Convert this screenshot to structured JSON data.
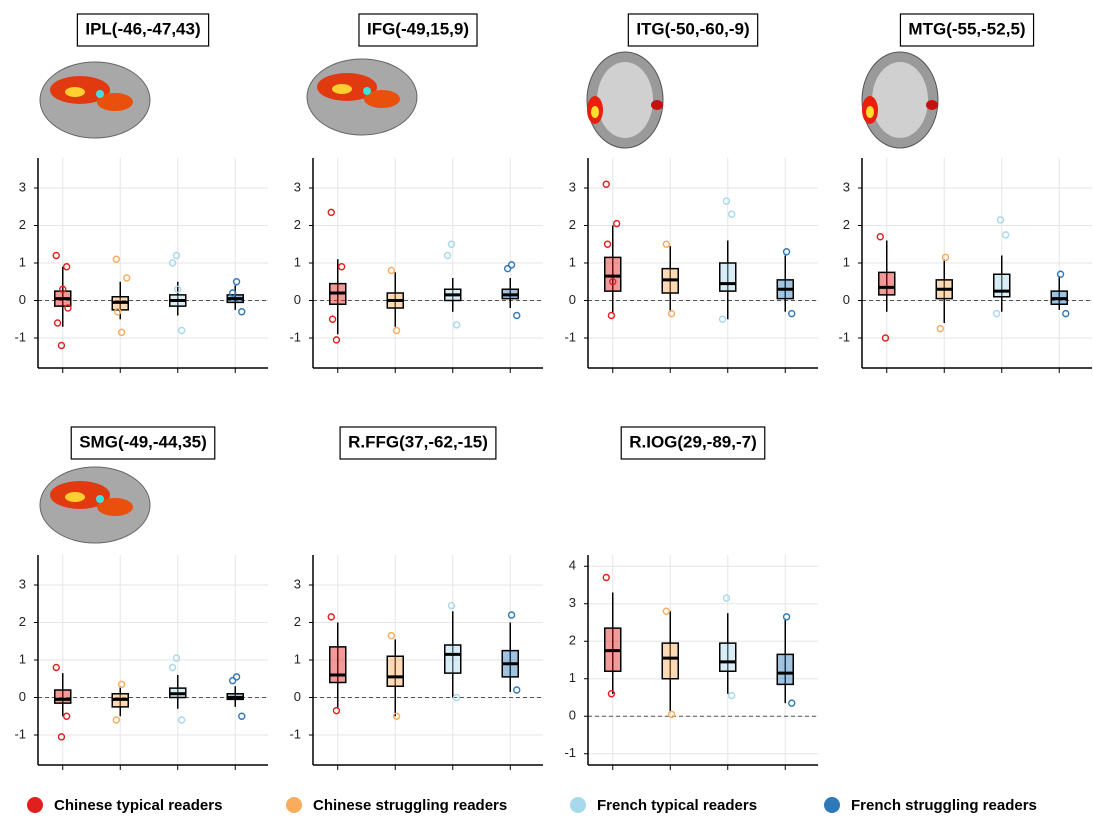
{
  "chart_data": [
    {
      "type": "box",
      "title": "IPL(-46,-47,43)",
      "ylim": [
        -1.8,
        3.8
      ],
      "yticks": [
        -1,
        0,
        1,
        2,
        3
      ],
      "grid": true,
      "categories": [
        null,
        null,
        null,
        null
      ],
      "groups": [
        {
          "whislo": -0.7,
          "q1": -0.15,
          "med": 0.05,
          "q3": 0.25,
          "whishi": 0.9,
          "points": [
            1.2,
            -1.2,
            0.9,
            -0.6,
            0.3,
            -0.2
          ]
        },
        {
          "whislo": -0.5,
          "q1": -0.25,
          "med": -0.05,
          "q3": 0.1,
          "whishi": 0.5,
          "points": [
            1.1,
            -0.85,
            0.6,
            -0.3
          ]
        },
        {
          "whislo": -0.4,
          "q1": -0.15,
          "med": 0.0,
          "q3": 0.15,
          "whishi": 0.5,
          "points": [
            1.2,
            -0.8,
            1.0,
            0.3
          ]
        },
        {
          "whislo": -0.25,
          "q1": -0.05,
          "med": 0.05,
          "q3": 0.15,
          "whishi": 0.4,
          "points": [
            0.5,
            -0.3,
            0.2
          ]
        }
      ]
    },
    {
      "type": "box",
      "title": "IFG(-49,15,9)",
      "ylim": [
        -1.8,
        3.8
      ],
      "yticks": [
        -1,
        0,
        1,
        2,
        3
      ],
      "grid": true,
      "categories": [
        null,
        null,
        null,
        null
      ],
      "groups": [
        {
          "whislo": -0.9,
          "q1": -0.1,
          "med": 0.2,
          "q3": 0.45,
          "whishi": 1.1,
          "points": [
            2.35,
            -1.05,
            0.9,
            -0.5
          ]
        },
        {
          "whislo": -0.7,
          "q1": -0.2,
          "med": 0.0,
          "q3": 0.2,
          "whishi": 0.75,
          "points": [
            0.8,
            -0.8
          ]
        },
        {
          "whislo": -0.3,
          "q1": 0.0,
          "med": 0.15,
          "q3": 0.3,
          "whishi": 0.6,
          "points": [
            1.5,
            -0.65,
            1.2
          ]
        },
        {
          "whislo": -0.2,
          "q1": 0.05,
          "med": 0.15,
          "q3": 0.3,
          "whishi": 0.6,
          "points": [
            0.95,
            -0.4,
            0.85
          ]
        }
      ]
    },
    {
      "type": "box",
      "title": "ITG(-50,-60,-9)",
      "ylim": [
        -1.8,
        3.8
      ],
      "yticks": [
        -1,
        0,
        1,
        2,
        3
      ],
      "grid": true,
      "categories": [
        null,
        null,
        null,
        null
      ],
      "groups": [
        {
          "whislo": -0.35,
          "q1": 0.25,
          "med": 0.65,
          "q3": 1.15,
          "whishi": 2.0,
          "points": [
            3.1,
            -0.4,
            2.05,
            1.5,
            0.5
          ]
        },
        {
          "whislo": -0.3,
          "q1": 0.2,
          "med": 0.55,
          "q3": 0.85,
          "whishi": 1.45,
          "points": [
            1.5,
            -0.35
          ]
        },
        {
          "whislo": -0.5,
          "q1": 0.25,
          "med": 0.45,
          "q3": 1.0,
          "whishi": 1.6,
          "points": [
            2.65,
            2.3,
            -0.5
          ]
        },
        {
          "whislo": -0.3,
          "q1": 0.05,
          "med": 0.3,
          "q3": 0.55,
          "whishi": 1.2,
          "points": [
            1.3,
            -0.35
          ]
        }
      ]
    },
    {
      "type": "box",
      "title": "MTG(-55,-52,5)",
      "ylim": [
        -1.8,
        3.8
      ],
      "yticks": [
        -1,
        0,
        1,
        2,
        3
      ],
      "grid": true,
      "categories": [
        null,
        null,
        null,
        null
      ],
      "groups": [
        {
          "whislo": -0.3,
          "q1": 0.15,
          "med": 0.35,
          "q3": 0.75,
          "whishi": 1.6,
          "points": [
            1.7,
            -1.0
          ]
        },
        {
          "whislo": -0.6,
          "q1": 0.05,
          "med": 0.3,
          "q3": 0.55,
          "whishi": 1.1,
          "points": [
            -0.75,
            1.15
          ]
        },
        {
          "whislo": -0.3,
          "q1": 0.1,
          "med": 0.25,
          "q3": 0.7,
          "whishi": 1.2,
          "points": [
            2.15,
            1.75,
            -0.35
          ]
        },
        {
          "whislo": -0.25,
          "q1": -0.1,
          "med": 0.05,
          "q3": 0.25,
          "whishi": 0.65,
          "points": [
            0.7,
            -0.35
          ]
        }
      ]
    },
    {
      "type": "box",
      "title": "SMG(-49,-44,35)",
      "ylim": [
        -1.8,
        3.8
      ],
      "yticks": [
        -1,
        0,
        1,
        2,
        3
      ],
      "grid": true,
      "categories": [
        null,
        null,
        null,
        null
      ],
      "groups": [
        {
          "whislo": -0.5,
          "q1": -0.15,
          "med": -0.05,
          "q3": 0.2,
          "whishi": 0.65,
          "points": [
            0.8,
            -1.05,
            -0.5
          ]
        },
        {
          "whislo": -0.5,
          "q1": -0.25,
          "med": -0.05,
          "q3": 0.1,
          "whishi": 0.3,
          "points": [
            -0.6,
            0.35
          ]
        },
        {
          "whislo": -0.3,
          "q1": 0.0,
          "med": 0.1,
          "q3": 0.25,
          "whishi": 0.6,
          "points": [
            1.05,
            -0.6,
            0.8
          ]
        },
        {
          "whislo": -0.25,
          "q1": -0.05,
          "med": 0.0,
          "q3": 0.1,
          "whishi": 0.3,
          "points": [
            0.55,
            -0.5,
            0.45
          ]
        }
      ]
    },
    {
      "type": "box",
      "title": "R.FFG(37,-62,-15)",
      "ylim": [
        -1.8,
        3.8
      ],
      "yticks": [
        -1,
        0,
        1,
        2,
        3
      ],
      "grid": true,
      "categories": [
        null,
        null,
        null,
        null
      ],
      "groups": [
        {
          "whislo": -0.3,
          "q1": 0.4,
          "med": 0.6,
          "q3": 1.35,
          "whishi": 2.0,
          "points": [
            2.15,
            -0.35
          ]
        },
        {
          "whislo": -0.5,
          "q1": 0.3,
          "med": 0.55,
          "q3": 1.1,
          "whishi": 1.55,
          "points": [
            1.65,
            -0.5
          ]
        },
        {
          "whislo": 0.0,
          "q1": 0.65,
          "med": 1.15,
          "q3": 1.4,
          "whishi": 2.3,
          "points": [
            2.45,
            0.0
          ]
        },
        {
          "whislo": 0.15,
          "q1": 0.55,
          "med": 0.9,
          "q3": 1.25,
          "whishi": 2.0,
          "points": [
            2.2,
            0.2
          ]
        }
      ]
    },
    {
      "type": "box",
      "title": "R.IOG(29,-89,-7)",
      "ylim": [
        -1.3,
        4.3
      ],
      "yticks": [
        -1,
        0,
        1,
        2,
        3,
        4
      ],
      "grid": true,
      "categories": [
        null,
        null,
        null,
        null
      ],
      "groups": [
        {
          "whislo": 0.6,
          "q1": 1.2,
          "med": 1.75,
          "q3": 2.35,
          "whishi": 3.3,
          "points": [
            3.7,
            0.6
          ]
        },
        {
          "whislo": 0.1,
          "q1": 1.0,
          "med": 1.55,
          "q3": 1.95,
          "whishi": 2.8,
          "points": [
            2.8,
            0.05
          ]
        },
        {
          "whislo": 0.6,
          "q1": 1.2,
          "med": 1.45,
          "q3": 1.95,
          "whishi": 2.75,
          "points": [
            3.15,
            0.55
          ]
        },
        {
          "whislo": 0.35,
          "q1": 0.85,
          "med": 1.15,
          "q3": 1.65,
          "whishi": 2.6,
          "points": [
            2.65,
            0.35
          ]
        }
      ]
    }
  ],
  "legend": [
    {
      "name": "Chinese typical readers",
      "color": "#e0201f"
    },
    {
      "name": "Chinese struggling readers",
      "color": "#f9ac5c"
    },
    {
      "name": "French typical readers",
      "color": "#a8d8ec"
    },
    {
      "name": "French struggling readers",
      "color": "#2e79b9"
    }
  ]
}
